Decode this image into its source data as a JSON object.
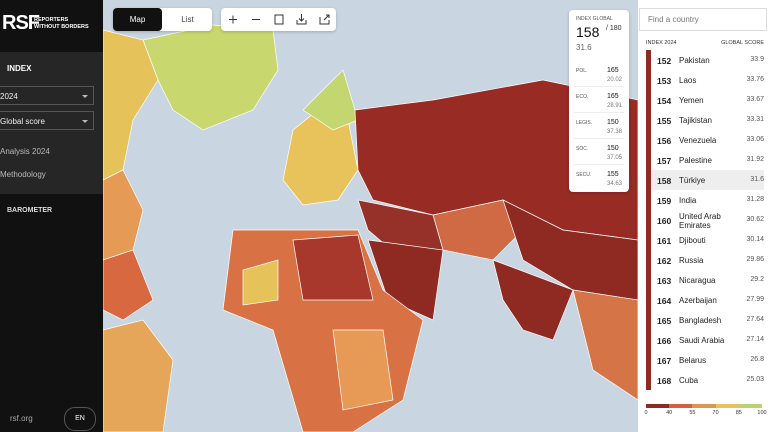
{
  "sidebar": {
    "logo": "RSF",
    "logo_text": [
      "REPORTERS",
      "WITHOUT BORDERS"
    ],
    "index_label": "INDEX",
    "year": "2024",
    "indicator": "Global score",
    "links": [
      "Analysis 2024",
      "Methodology"
    ],
    "barometer": "BAROMETER",
    "site": "rsf.org",
    "lang": "EN"
  },
  "view_tabs": [
    "Map",
    "List"
  ],
  "country_card": {
    "label": "INDEX GLOBAL",
    "rank": 158,
    "total": "/ 180",
    "score": 31.6,
    "indicators": [
      {
        "name": "POL.",
        "rank": 165,
        "score": 20.02
      },
      {
        "name": "ECO.",
        "rank": 165,
        "score": 28.91
      },
      {
        "name": "LEGIS.",
        "rank": 150,
        "score": 37.38
      },
      {
        "name": "SOC.",
        "rank": 150,
        "score": 37.05
      },
      {
        "name": "SECU.",
        "rank": 155,
        "score": 34.63
      }
    ]
  },
  "ranking": {
    "search_placeholder": "Find a country",
    "header_rank": "INDEX 2024",
    "header_score": "GLOBAL SCORE",
    "rows": [
      {
        "rank": 152,
        "country": "Pakistan",
        "score": 33.9
      },
      {
        "rank": 153,
        "country": "Laos",
        "score": 33.76
      },
      {
        "rank": 154,
        "country": "Yemen",
        "score": 33.67
      },
      {
        "rank": 155,
        "country": "Tajikistan",
        "score": 33.31
      },
      {
        "rank": 156,
        "country": "Venezuela",
        "score": 33.06
      },
      {
        "rank": 157,
        "country": "Palestine",
        "score": 31.92
      },
      {
        "rank": 158,
        "country": "Türkiye",
        "score": 31.6
      },
      {
        "rank": 159,
        "country": "India",
        "score": 31.28
      },
      {
        "rank": 160,
        "country": "United Arab Emirates",
        "score": 30.62
      },
      {
        "rank": 161,
        "country": "Djibouti",
        "score": 30.14
      },
      {
        "rank": 162,
        "country": "Russia",
        "score": 29.86
      },
      {
        "rank": 163,
        "country": "Nicaragua",
        "score": 29.2
      },
      {
        "rank": 164,
        "country": "Azerbaijan",
        "score": 27.99
      },
      {
        "rank": 165,
        "country": "Bangladesh",
        "score": 27.64
      },
      {
        "rank": 166,
        "country": "Saudi Arabia",
        "score": 27.14
      },
      {
        "rank": 167,
        "country": "Belarus",
        "score": 26.8
      },
      {
        "rank": 168,
        "country": "Cuba",
        "score": 25.03
      }
    ]
  },
  "legend": {
    "ticks": [
      0,
      40,
      55,
      70,
      85,
      100
    ],
    "colors": [
      "#8e2a22",
      "#d0633f",
      "#e0954f",
      "#e9c35a",
      "#b9d36e"
    ]
  }
}
